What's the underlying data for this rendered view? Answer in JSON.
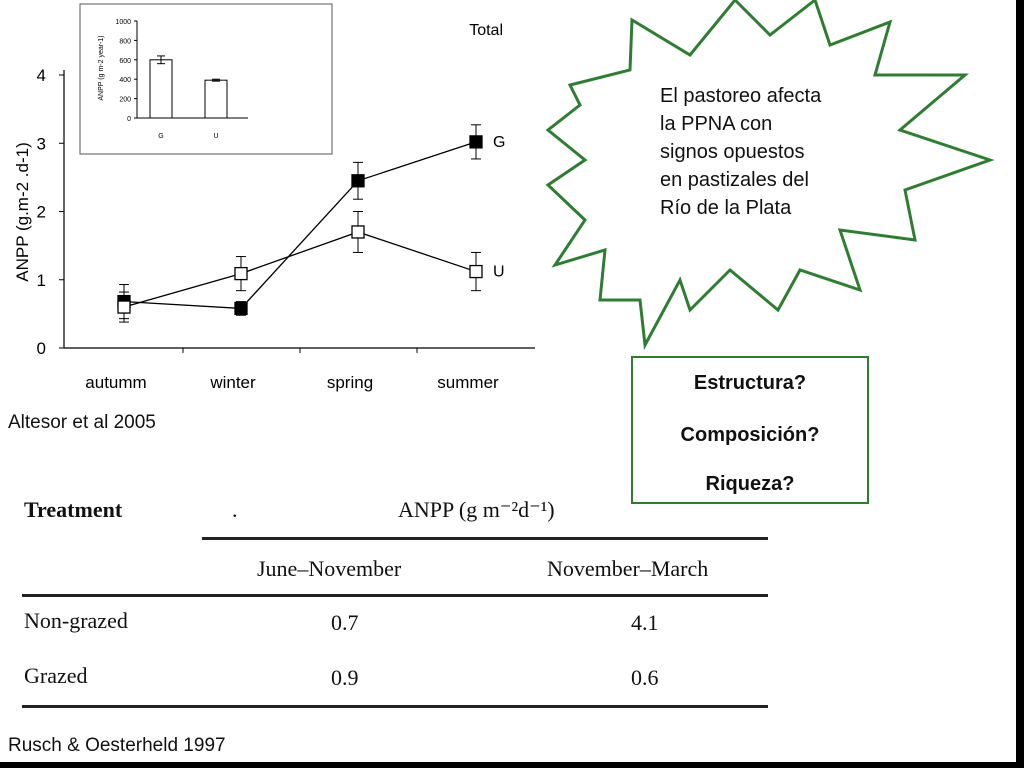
{
  "chart_data": [
    {
      "type": "line",
      "title": "Total",
      "xlabel": "",
      "ylabel": "ANPP (g.m-2 .d-1)",
      "categories": [
        "autumm",
        "winter",
        "spring",
        "summer"
      ],
      "ylim": [
        0,
        4
      ],
      "yticks": [
        "0",
        "1",
        "2",
        "3",
        "4"
      ],
      "series": [
        {
          "name": "G",
          "marker": "filled-square",
          "values": [
            0.68,
            0.58,
            2.45,
            3.02
          ],
          "errors": [
            0.25,
            0.1,
            0.27,
            0.25
          ]
        },
        {
          "name": "U",
          "marker": "open-square",
          "values": [
            0.6,
            1.09,
            1.7,
            1.12
          ],
          "errors": [
            0.22,
            0.25,
            0.3,
            0.28
          ]
        }
      ]
    },
    {
      "type": "bar",
      "title": "",
      "ylabel": "ANPP (g m-2 year-1)",
      "categories": [
        "G",
        "U"
      ],
      "values": [
        600,
        390
      ],
      "errors": [
        40,
        10
      ],
      "ylim": [
        0,
        1000
      ],
      "yticks": [
        "0",
        "200",
        "400",
        "600",
        "800",
        "1000"
      ]
    }
  ],
  "star_text": [
    "El pastoreo afecta",
    "la PPNA con",
    "signos opuestos",
    "en pastizales del",
    "Río de la Plata"
  ],
  "questions": [
    "Estructura?",
    "Composición?",
    "Riqueza?"
  ],
  "citation_1": "Altesor et al 2005",
  "citation_2": "Rusch & Oesterheld 1997",
  "table": {
    "col_treatment": "Treatment",
    "col_group": "ANPP (g m⁻²d⁻¹)",
    "sub_headers": [
      "June–November",
      "November–March"
    ],
    "rows": [
      {
        "label": "Non-grazed",
        "values": [
          "0.7",
          "4.1"
        ]
      },
      {
        "label": "Grazed",
        "values": [
          "0.9",
          "0.6"
        ]
      }
    ]
  },
  "colors": {
    "star_border": "#2e7d32",
    "box_border": "#2e7d32",
    "line": "#000000"
  }
}
